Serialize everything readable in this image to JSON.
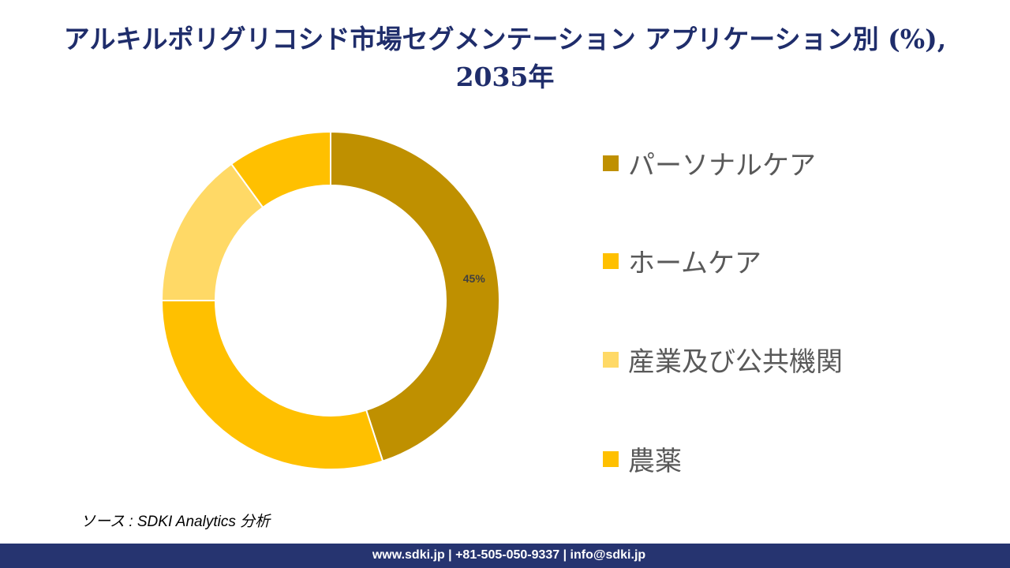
{
  "title": "アルキルポリグリコシド市場セグメンテーション アプリケーション別 (%), 2035年",
  "chart_data": {
    "type": "donut",
    "title": "アルキルポリグリコシド市場セグメンテーション アプリケーション別 (%), 2035年",
    "categories": [
      "パーソナルケア",
      "ホームケア",
      "産業及び公共機関",
      "農薬"
    ],
    "values": [
      45,
      30,
      15,
      10
    ],
    "colors": [
      "#BF9000",
      "#FFC000",
      "#FFD966",
      "#FFC000"
    ],
    "data_labels": [
      "45%",
      "",
      "",
      ""
    ],
    "legend_position": "right"
  },
  "source": "ソース : SDKI Analytics 分析",
  "footer": "www.sdki.jp | +81-505-050-9337 | info@sdki.jp"
}
